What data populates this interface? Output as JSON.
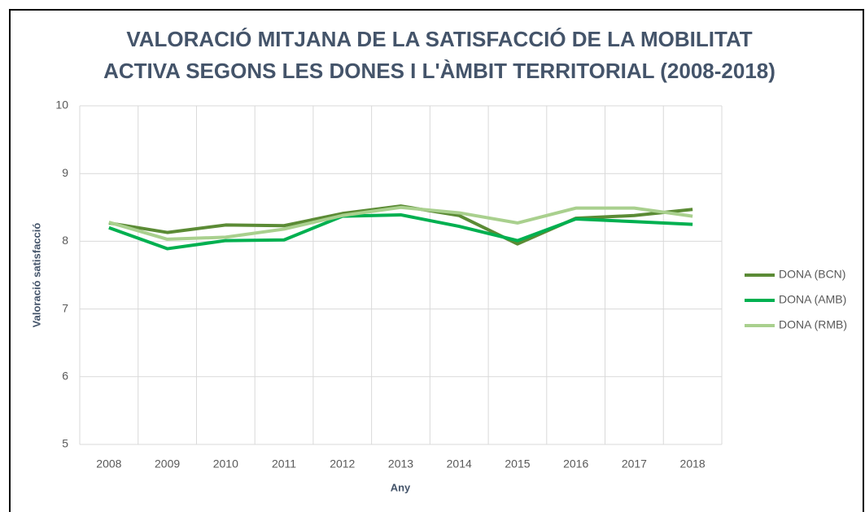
{
  "chart_data": {
    "type": "line",
    "title": [
      "VALORACIÓ MITJANA DE LA SATISFACCIÓ DE LA MOBILITAT",
      "ACTIVA SEGONS LES DONES I L'ÀMBIT TERRITORIAL (2008-2018)"
    ],
    "xlabel": "Any",
    "ylabel": "Valoració satisfacció",
    "categories": [
      "2008",
      "2009",
      "2010",
      "2011",
      "2012",
      "2013",
      "2014",
      "2015",
      "2016",
      "2017",
      "2018"
    ],
    "series": [
      {
        "name": "DONA (BCN)",
        "color": "#5b8b35",
        "values": [
          8.27,
          8.13,
          8.24,
          8.23,
          8.41,
          8.52,
          8.38,
          7.96,
          8.34,
          8.38,
          8.47
        ]
      },
      {
        "name": "DONA (AMB)",
        "color": "#00b050",
        "values": [
          8.2,
          7.89,
          8.01,
          8.02,
          8.37,
          8.39,
          8.22,
          8.01,
          8.33,
          8.29,
          8.25
        ]
      },
      {
        "name": "DONA (RMB)",
        "color": "#a9d08e",
        "values": [
          8.28,
          8.03,
          8.06,
          8.18,
          8.38,
          8.5,
          8.42,
          8.27,
          8.49,
          8.49,
          8.37
        ]
      }
    ],
    "ylim": [
      5,
      10
    ],
    "yticks": [
      5,
      6,
      7,
      8,
      9,
      10
    ],
    "grid": true,
    "legend": "right"
  }
}
